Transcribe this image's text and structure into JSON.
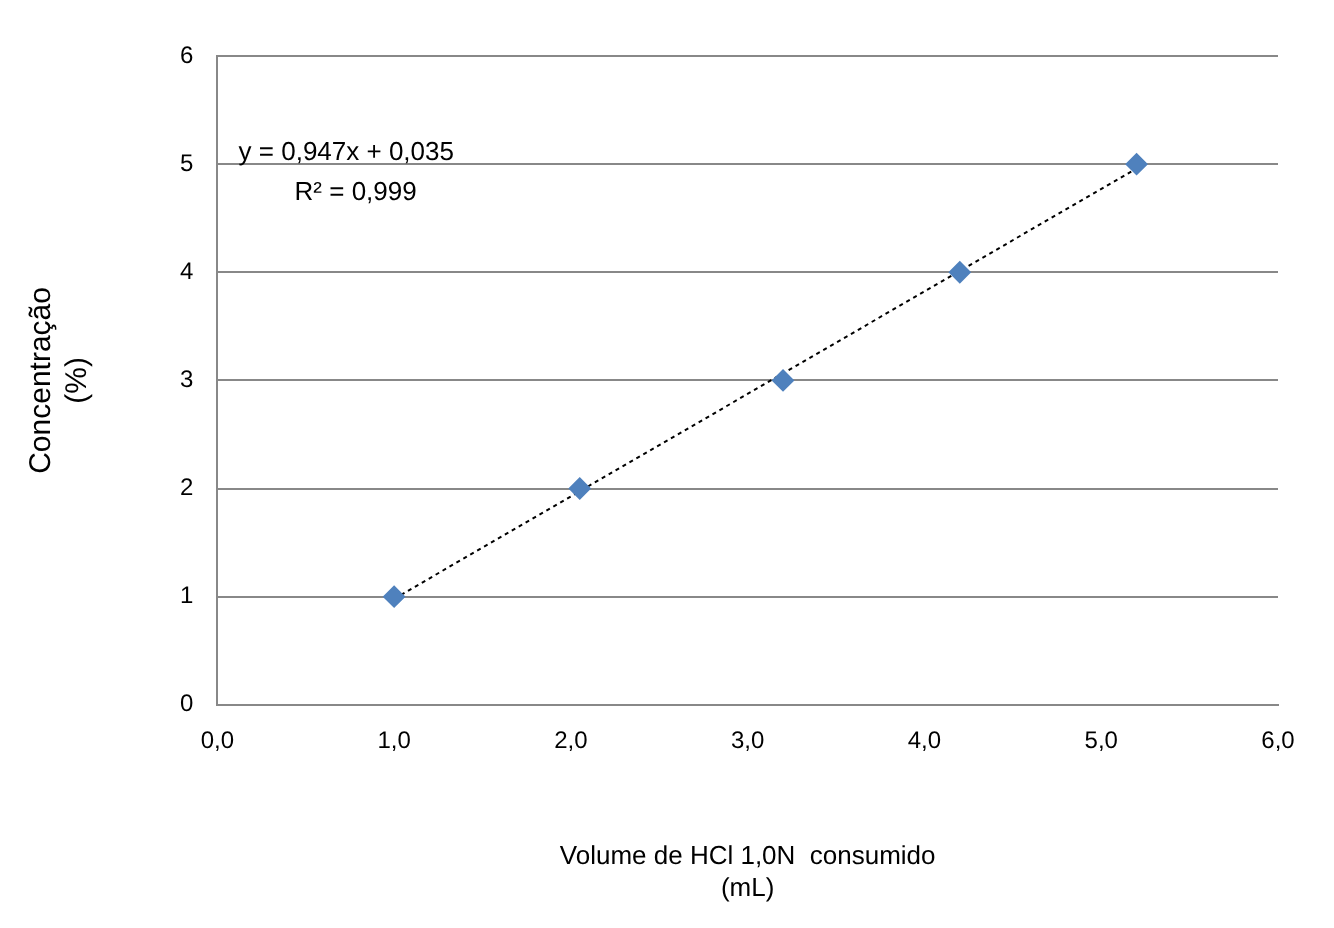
{
  "chart_data": {
    "type": "scatter",
    "xlabel": "Volume de HCl 1,0N  consumido\n(mL)",
    "ylabel": "Concentração\n(%)",
    "x": [
      1.0,
      2.05,
      3.2,
      4.2,
      5.2
    ],
    "series": [
      {
        "color": "#4f81bd",
        "values": [
          1,
          2,
          3,
          4,
          5
        ],
        "marker": "diamond"
      },
      {
        "type": "line",
        "color": "#000000",
        "x": [
          1.0,
          5.2
        ],
        "values": [
          0.98,
          4.96
        ],
        "marker": "none",
        "line_style": "dotted"
      }
    ],
    "xlim": [
      0,
      6
    ],
    "xticks": [
      {
        "value": 0,
        "label": "0,0"
      },
      {
        "value": 1,
        "label": "1,0"
      },
      {
        "value": 2,
        "label": "2,0"
      },
      {
        "value": 3,
        "label": "3,0"
      },
      {
        "value": 4,
        "label": "4,0"
      },
      {
        "value": 5,
        "label": "5,0"
      },
      {
        "value": 6,
        "label": "6,0"
      }
    ],
    "ylim": [
      0,
      6
    ],
    "yticks": [
      0,
      1,
      2,
      3,
      4,
      5,
      6
    ],
    "grid": "y",
    "legend": false,
    "annotations": [
      "y = 0,947x + 0,035\nR² = 0,999"
    ]
  }
}
